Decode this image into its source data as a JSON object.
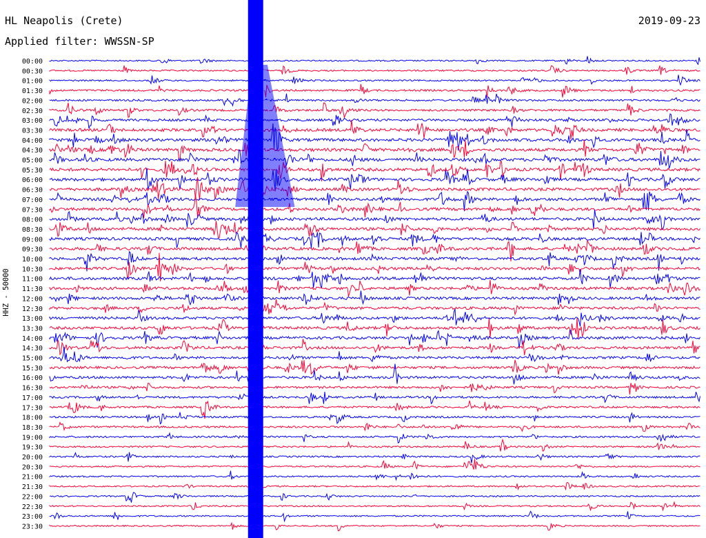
{
  "chart_data": {
    "type": "line",
    "title": "HL Neapolis (Crete)",
    "date": "2019-09-23",
    "subtitle": "Applied filter: WWSSN-SP",
    "ylabel": "HHZ - 50000",
    "xlabel": "",
    "trace_colors": [
      "#0000ff",
      "#ff0033"
    ],
    "row_times": [
      "00:00",
      "00:30",
      "01:00",
      "01:30",
      "02:00",
      "02:30",
      "03:00",
      "03:30",
      "04:00",
      "04:30",
      "05:00",
      "05:30",
      "06:00",
      "06:30",
      "07:00",
      "07:30",
      "08:00",
      "08:30",
      "09:00",
      "09:30",
      "10:00",
      "10:30",
      "11:00",
      "11:30",
      "12:00",
      "12:30",
      "13:00",
      "13:30",
      "14:00",
      "14:30",
      "15:00",
      "15:30",
      "16:00",
      "16:30",
      "17:00",
      "17:30",
      "18:00",
      "18:30",
      "19:00",
      "19:30",
      "20:00",
      "20:30",
      "21:00",
      "21:30",
      "22:00",
      "22:30",
      "23:00",
      "23:30"
    ],
    "row_activity": [
      0.25,
      0.3,
      0.3,
      0.45,
      0.45,
      0.55,
      0.7,
      0.9,
      0.95,
      1.0,
      1.0,
      1.0,
      0.95,
      0.95,
      0.9,
      0.9,
      0.9,
      0.9,
      0.9,
      0.9,
      0.85,
      0.85,
      0.85,
      0.85,
      0.8,
      0.8,
      0.8,
      0.85,
      0.85,
      0.8,
      0.7,
      0.7,
      0.7,
      0.6,
      0.55,
      0.5,
      0.45,
      0.45,
      0.4,
      0.35,
      0.35,
      0.3,
      0.3,
      0.28,
      0.25,
      0.25,
      0.25,
      0.22
    ],
    "main_event": {
      "row_start": 0,
      "row_end": 47,
      "x_fraction": 0.38
    }
  }
}
